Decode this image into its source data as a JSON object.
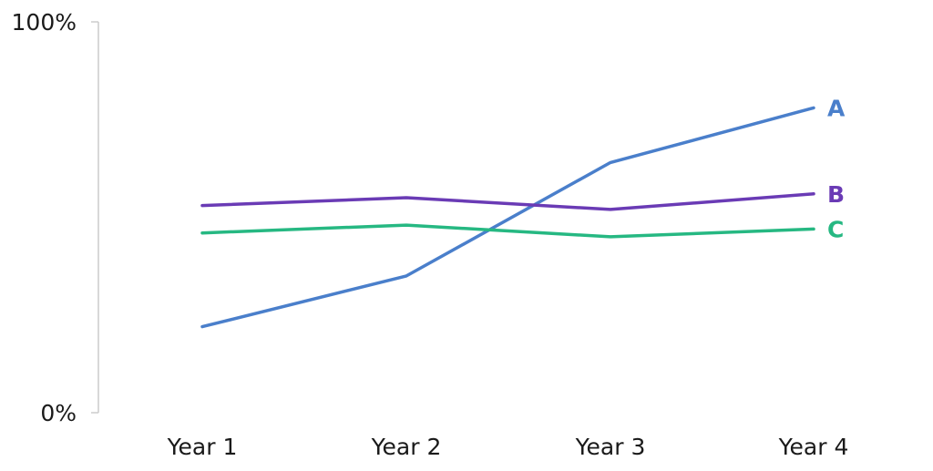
{
  "chart_data": {
    "type": "line",
    "categories": [
      "Year 1",
      "Year 2",
      "Year 3",
      "Year 4"
    ],
    "ylim": [
      0,
      100
    ],
    "y_tick_labels": [
      "0%",
      "100%"
    ],
    "grid": false,
    "legend": "inline labels at line ends",
    "series": [
      {
        "name": "A",
        "color": "#4a7fcb",
        "values": [
          22,
          35,
          64,
          78
        ]
      },
      {
        "name": "B",
        "color": "#6a3bb5",
        "values": [
          53,
          55,
          52,
          56
        ]
      },
      {
        "name": "C",
        "color": "#26b882",
        "values": [
          46,
          48,
          45,
          47
        ]
      }
    ]
  }
}
